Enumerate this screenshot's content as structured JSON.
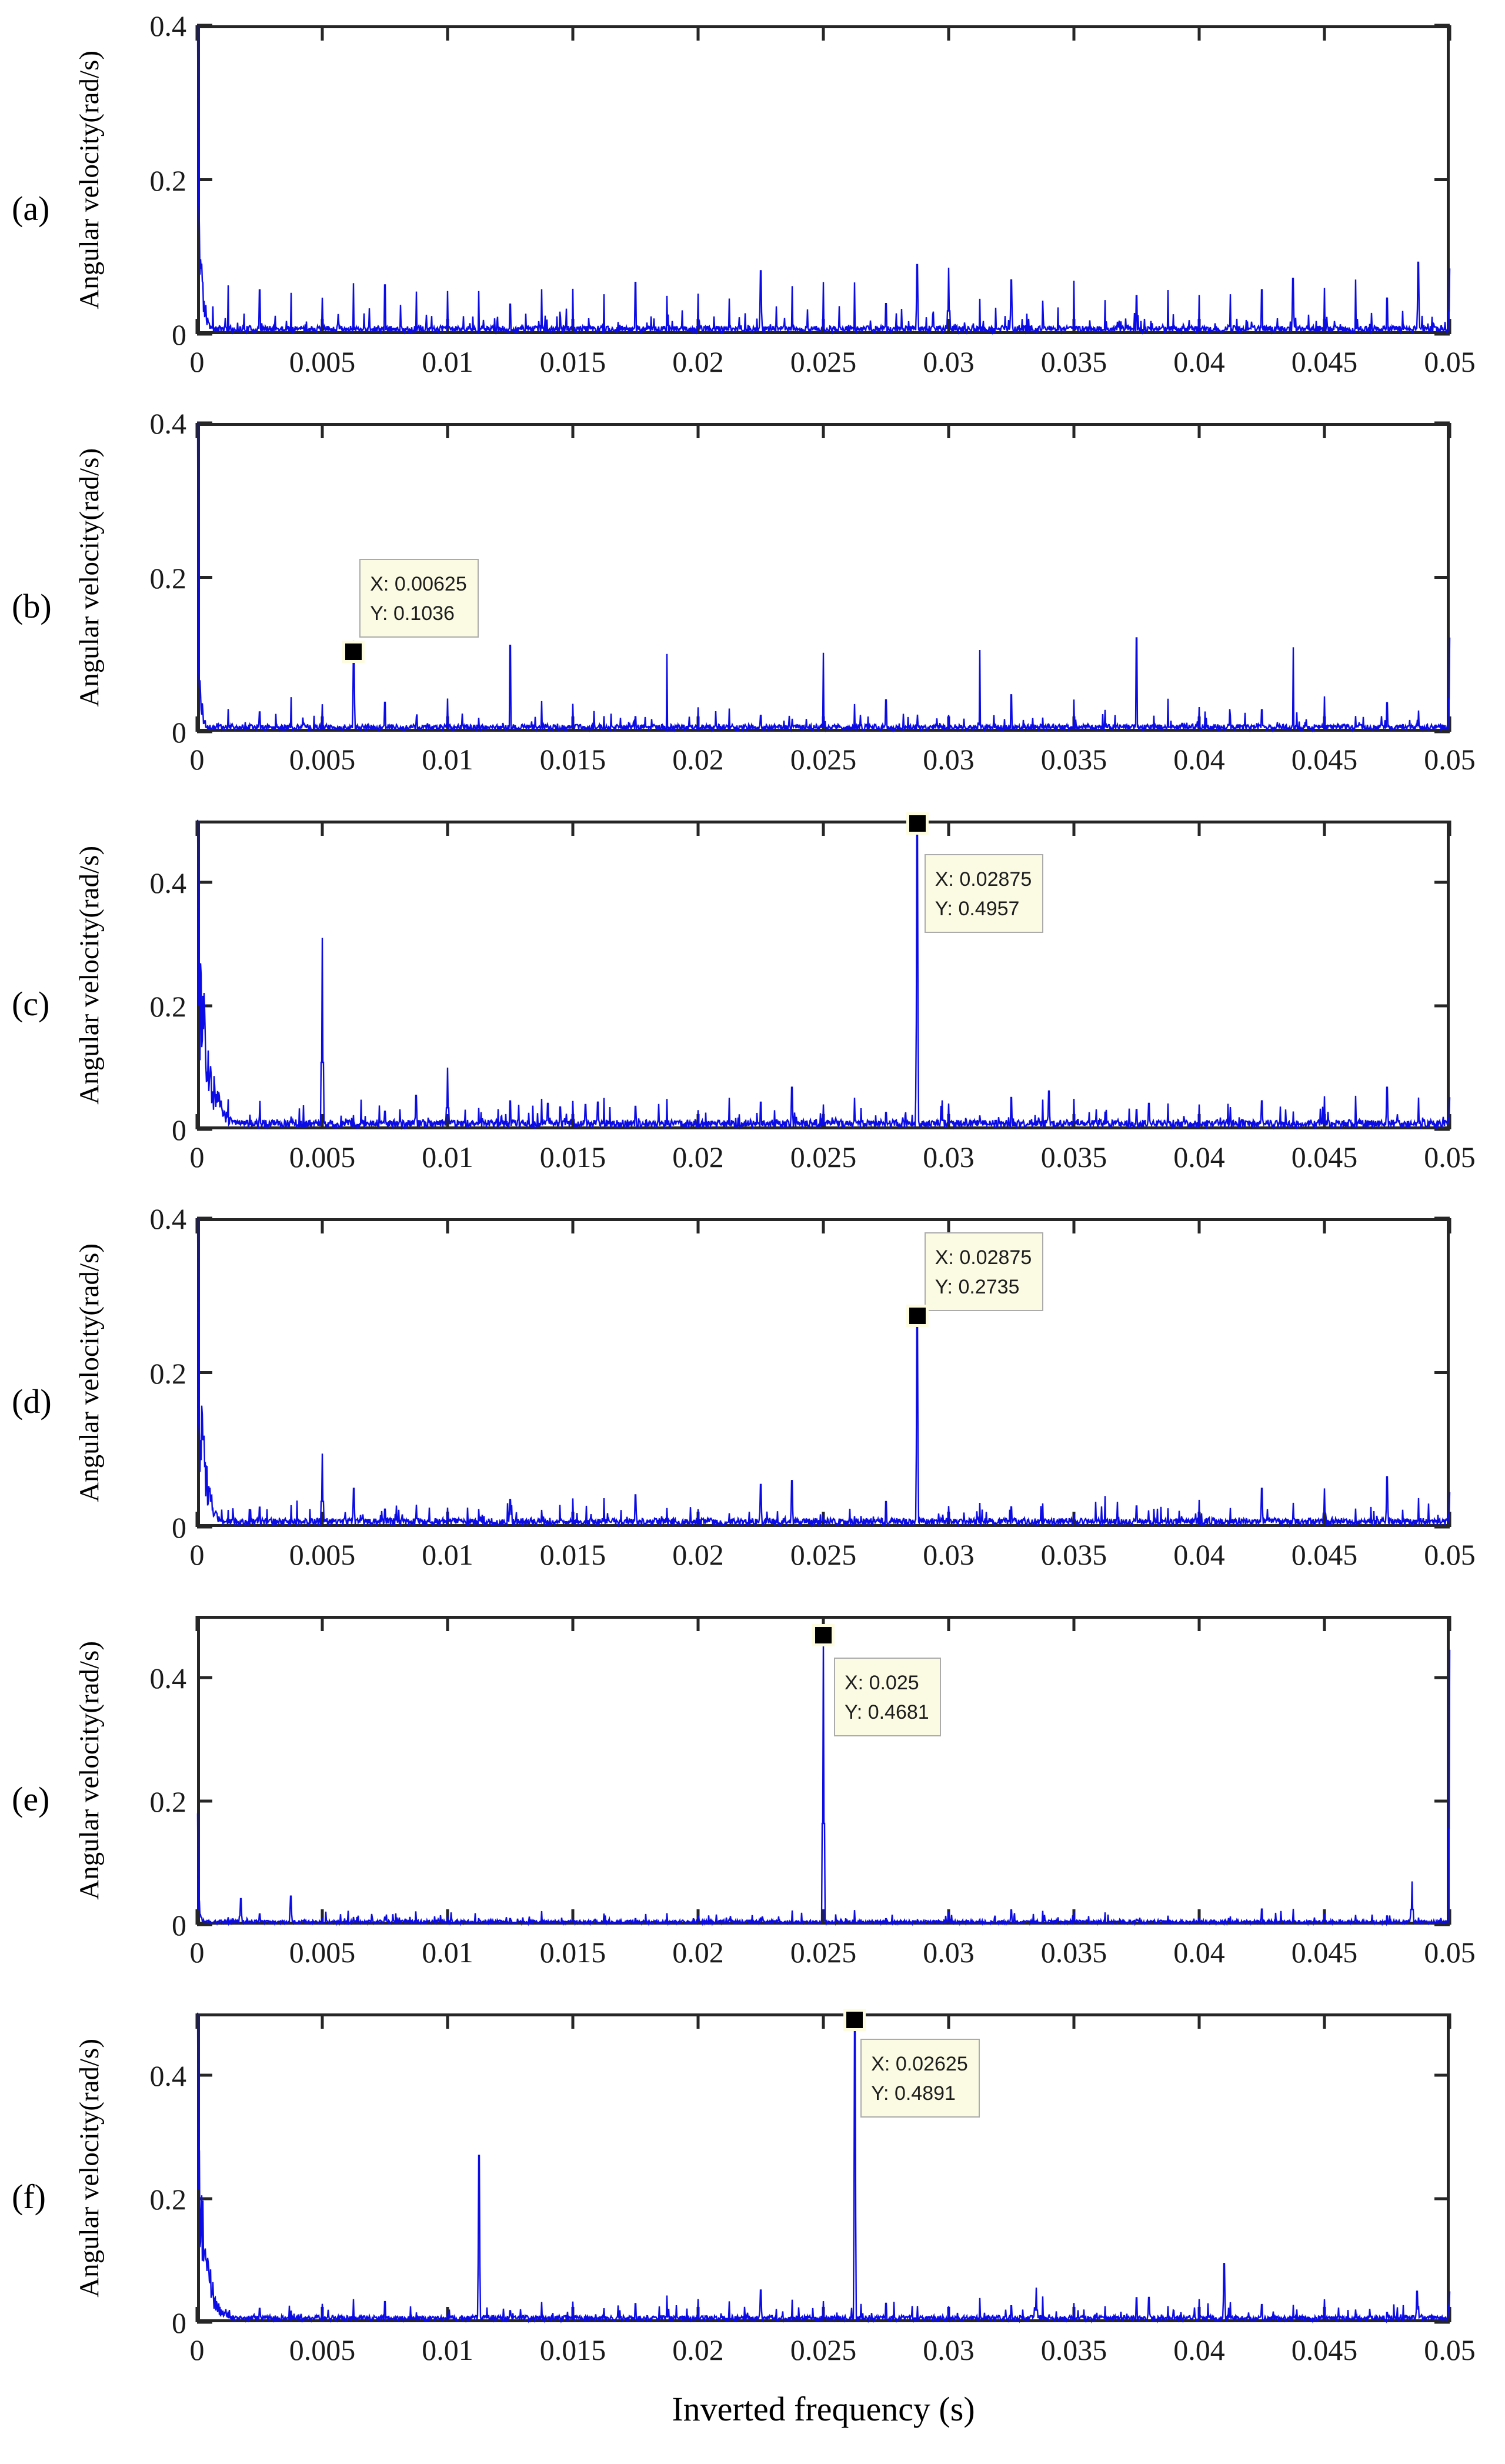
{
  "figure": {
    "xlabel": "Inverted frequency (s)",
    "ylabel": "Angular velocity(rad/s)",
    "background": "#FFFFFF",
    "trace_color": "#0B0BE6",
    "axis_color": "#262626",
    "datatip_bg": "#FBFBE3",
    "datatip_border": "#ABABAB",
    "marker_color": "#000000"
  },
  "axes": {
    "xlim": [
      0,
      0.05
    ],
    "xtick_values": [
      0,
      0.005,
      0.01,
      0.015,
      0.02,
      0.025,
      0.03,
      0.035,
      0.04,
      0.045,
      0.05
    ],
    "xtick_labels": [
      "0",
      "0.005",
      "0.01",
      "0.015",
      "0.02",
      "0.025",
      "0.03",
      "0.035",
      "0.04",
      "0.045",
      "0.05"
    ],
    "grid": false,
    "legend": "none"
  },
  "chart_data": [
    {
      "type": "line",
      "panel": "(a)",
      "ylabel": "Angular velocity(rad/s)",
      "ylim": [
        0,
        0.4
      ],
      "yticks": [
        {
          "v": 0,
          "label": "0"
        },
        {
          "v": 0.2,
          "label": "0.2"
        },
        {
          "v": 0.4,
          "label": "0.4"
        }
      ],
      "noise_floor": 0.009,
      "dc": {
        "spike": 0.4,
        "amp": 0.3,
        "tau": 0.00018
      },
      "combs": [
        {
          "spacing": 0.000625,
          "hmin": 0.012,
          "hmax": 0.038
        },
        {
          "spacing": 0.00125,
          "hmin": 0.038,
          "hmax": 0.072
        }
      ],
      "peaks": [
        [
          0.0225,
          0.082
        ],
        [
          0.02875,
          0.09
        ],
        [
          0.03,
          0.086
        ],
        [
          0.0325,
          0.07
        ],
        [
          0.04375,
          0.072
        ],
        [
          0.04875,
          0.093
        ],
        [
          0.05,
          0.085
        ]
      ],
      "datatip": null
    },
    {
      "type": "line",
      "panel": "(b)",
      "ylabel": "Angular velocity(rad/s)",
      "ylim": [
        0,
        0.4
      ],
      "yticks": [
        {
          "v": 0,
          "label": "0"
        },
        {
          "v": 0.2,
          "label": "0.2"
        },
        {
          "v": 0.4,
          "label": "0.4"
        }
      ],
      "noise_floor": 0.008,
      "dc": {
        "spike": 0.4,
        "amp": 0.22,
        "tau": 0.00012
      },
      "combs": [
        {
          "spacing": 0.00125,
          "hmin": 0.016,
          "hmax": 0.048
        },
        {
          "spacing": 0.00625,
          "hmin": 0.1,
          "hmax": 0.122
        }
      ],
      "peaks": [
        [
          0.00625,
          0.1036
        ],
        [
          0.05,
          0.122
        ]
      ],
      "datatip": {
        "x": 0.00625,
        "y": 0.1036,
        "line1": "X: 0.00625",
        "line2": "Y: 0.1036",
        "offset": [
          10,
          -158
        ]
      }
    },
    {
      "type": "line",
      "panel": "(c)",
      "ylabel": "Angular velocity(rad/s)",
      "ylim": [
        0,
        0.5
      ],
      "yticks": [
        {
          "v": 0,
          "label": "0"
        },
        {
          "v": 0.2,
          "label": "0.2"
        },
        {
          "v": 0.4,
          "label": "0.4"
        }
      ],
      "noise_floor": 0.013,
      "dc": {
        "spike": 0.5,
        "amp": 0.42,
        "tau": 0.00045
      },
      "combs": [
        {
          "spacing": 0.00125,
          "hmin": 0.02,
          "hmax": 0.055
        }
      ],
      "peaks": [
        [
          0.005,
          0.31
        ],
        [
          0.00875,
          0.055
        ],
        [
          0.01,
          0.1
        ],
        [
          0.014,
          0.042
        ],
        [
          0.0145,
          0.036
        ],
        [
          0.015,
          0.046
        ],
        [
          0.0155,
          0.04
        ],
        [
          0.016,
          0.044
        ],
        [
          0.02375,
          0.068
        ],
        [
          0.02875,
          0.4957
        ],
        [
          0.034,
          0.062
        ],
        [
          0.038,
          0.042
        ],
        [
          0.0425,
          0.046
        ],
        [
          0.0475,
          0.068
        ],
        [
          0.05,
          0.052
        ]
      ],
      "datatip": {
        "x": 0.02875,
        "y": 0.4957,
        "line1": "X: 0.02875",
        "line2": "Y: 0.4957",
        "offset": [
          12,
          52
        ]
      }
    },
    {
      "type": "line",
      "panel": "(d)",
      "ylabel": "Angular velocity(rad/s)",
      "ylim": [
        0,
        0.4
      ],
      "yticks": [
        {
          "v": 0,
          "label": "0"
        },
        {
          "v": 0.2,
          "label": "0.2"
        },
        {
          "v": 0.4,
          "label": "0.4"
        }
      ],
      "noise_floor": 0.0095,
      "dc": {
        "spike": 0.4,
        "amp": 0.32,
        "tau": 0.0003
      },
      "combs": [
        {
          "spacing": 0.00125,
          "hmin": 0.014,
          "hmax": 0.042
        }
      ],
      "peaks": [
        [
          0.005,
          0.095
        ],
        [
          0.00625,
          0.05
        ],
        [
          0.0225,
          0.055
        ],
        [
          0.02375,
          0.06
        ],
        [
          0.02875,
          0.2735
        ],
        [
          0.0425,
          0.05
        ],
        [
          0.045,
          0.05
        ],
        [
          0.0475,
          0.065
        ],
        [
          0.05,
          0.045
        ]
      ],
      "datatip": {
        "x": 0.02875,
        "y": 0.2735,
        "line1": "X: 0.02875",
        "line2": "Y: 0.2735",
        "offset": [
          12,
          -142
        ]
      }
    },
    {
      "type": "line",
      "panel": "(e)",
      "ylabel": "Angular velocity(rad/s)",
      "ylim": [
        0,
        0.5
      ],
      "yticks": [
        {
          "v": 0,
          "label": "0"
        },
        {
          "v": 0.2,
          "label": "0.2"
        },
        {
          "v": 0.4,
          "label": "0.4"
        }
      ],
      "noise_floor": 0.006,
      "dc": {
        "spike": 0.18,
        "amp": 0.12,
        "tau": 0.0001
      },
      "combs": [
        {
          "spacing": 0.00125,
          "hmin": 0.007,
          "hmax": 0.026
        }
      ],
      "peaks": [
        [
          0.00175,
          0.042
        ],
        [
          0.00375,
          0.046
        ],
        [
          0.025,
          0.4681
        ],
        [
          0.0485,
          0.07
        ],
        [
          0.05,
          0.445
        ]
      ],
      "datatip": {
        "x": 0.025,
        "y": 0.4681,
        "line1": "X: 0.025",
        "line2": "Y: 0.4681",
        "offset": [
          18,
          38
        ]
      }
    },
    {
      "type": "line",
      "panel": "(f)",
      "ylabel": "Angular velocity(rad/s)",
      "ylim": [
        0,
        0.5
      ],
      "yticks": [
        {
          "v": 0,
          "label": "0"
        },
        {
          "v": 0.2,
          "label": "0.2"
        },
        {
          "v": 0.4,
          "label": "0.4"
        }
      ],
      "noise_floor": 0.009,
      "dc": {
        "spike": 0.5,
        "amp": 0.4,
        "tau": 0.00035
      },
      "combs": [
        {
          "spacing": 0.00125,
          "hmin": 0.014,
          "hmax": 0.045
        }
      ],
      "peaks": [
        [
          0.01125,
          0.27
        ],
        [
          0.0225,
          0.052
        ],
        [
          0.02625,
          0.4891
        ],
        [
          0.0335,
          0.056
        ],
        [
          0.038,
          0.04
        ],
        [
          0.041,
          0.095
        ],
        [
          0.0487,
          0.05
        ],
        [
          0.05,
          0.05
        ]
      ],
      "datatip": {
        "x": 0.02625,
        "y": 0.4891,
        "line1": "X: 0.02625",
        "line2": "Y: 0.4891",
        "offset": [
          10,
          32
        ]
      }
    }
  ]
}
